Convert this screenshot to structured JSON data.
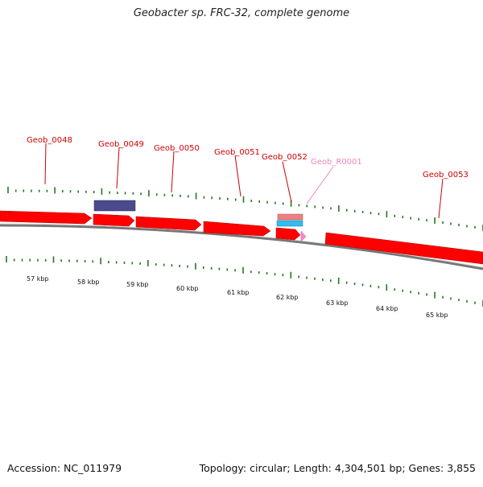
{
  "title": "Geobacter sp. FRC-32, complete genome",
  "footer": {
    "accession": "Accession: NC_011979",
    "summary": "Topology: circular; Length: 4,304,501 bp; Genes: 3,855"
  },
  "scale": {
    "ticks": [
      {
        "label": "57 kbp"
      },
      {
        "label": "58 kbp"
      },
      {
        "label": "59 kbp"
      },
      {
        "label": "60 kbp"
      },
      {
        "label": "61 kbp"
      },
      {
        "label": "62 kbp"
      },
      {
        "label": "63 kbp"
      },
      {
        "label": "64 kbp"
      },
      {
        "label": "65 kbp"
      }
    ]
  },
  "genes": [
    {
      "label": "Geob_0048",
      "type": "CDS",
      "color": "#cc0000"
    },
    {
      "label": "Geob_0049",
      "type": "CDS",
      "color": "#cc0000"
    },
    {
      "label": "Geob_0050",
      "type": "CDS",
      "color": "#cc0000"
    },
    {
      "label": "Geob_0051",
      "type": "CDS",
      "color": "#cc0000"
    },
    {
      "label": "Geob_0052",
      "type": "CDS",
      "color": "#cc0000"
    },
    {
      "label": "Geob_R0001",
      "type": "RNA",
      "color": "#ee88bb"
    },
    {
      "label": "Geob_0053",
      "type": "CDS",
      "color": "#cc0000"
    }
  ],
  "colors": {
    "cds": "#ff0000",
    "rna": "#ff88cc",
    "backbone": "#888888",
    "tick": "#227722",
    "feature_blue": "#4a4a8c",
    "feature_salmon": "#f08080",
    "feature_cyan": "#33bbee"
  }
}
